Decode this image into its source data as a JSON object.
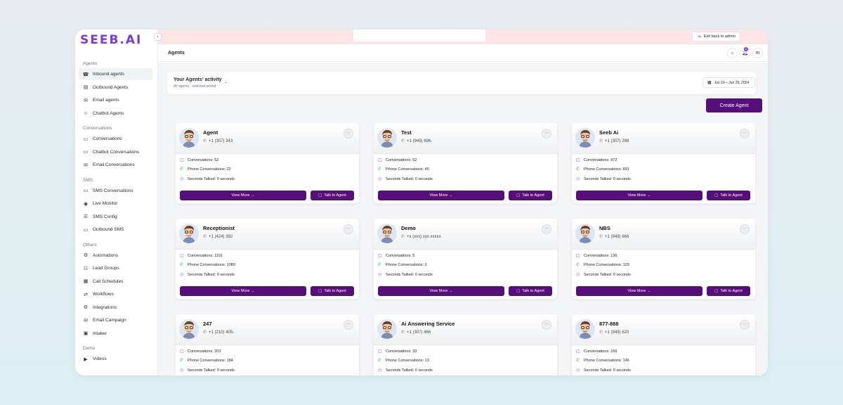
{
  "app": {
    "logo": "SEEB.AI",
    "collapse": "‹"
  },
  "topbar": {
    "exit_label": "Exit back to admin"
  },
  "header": {
    "title": "Agents",
    "notif_count": "0",
    "user_initial": "m"
  },
  "sidebar": {
    "sections": [
      {
        "label": "Agents",
        "items": [
          "Inbound agents",
          "Outbound Agents",
          "Email agents",
          "Chatbot Agents"
        ]
      },
      {
        "label": "Conversations",
        "items": [
          "Conversations",
          "Chatbot Conversations",
          "Email Conversations"
        ]
      },
      {
        "label": "SMS",
        "items": [
          "SMS Conversations",
          "Live Monitor",
          "SMS Config",
          "Outbound SMS"
        ]
      },
      {
        "label": "Others",
        "items": [
          "Automations",
          "Lead Groups",
          "Call Schedules",
          "Workflows",
          "Integrations",
          "Email Campaign",
          "Intaker"
        ]
      },
      {
        "label": "Demo",
        "items": [
          "Videos"
        ]
      }
    ]
  },
  "activity": {
    "title": "Your Agents' activity",
    "subtitle": "All agents · selected period",
    "date_range": "Jun 19 – Jun 25, 2024"
  },
  "create_label": "Create Agent",
  "card_labels": {
    "conversations": "Conversations:",
    "phone": "Phone Conversations:",
    "seconds": "Seconds Talked:",
    "view_more": "View More →",
    "talk": "Talk to Agent"
  },
  "cards": [
    {
      "name": "Agent",
      "phone": "+1 (307) 343",
      "conversations": "52",
      "phone_conversations": "22",
      "seconds": "0 seconds"
    },
    {
      "name": "Test",
      "phone": "+1 (949) 696-",
      "conversations": "52",
      "phone_conversations": "46",
      "seconds": "0 seconds"
    },
    {
      "name": "Seeb Ai",
      "phone": "+1 (307) 298",
      "conversations": "972",
      "phone_conversations": "891",
      "seconds": "0 seconds"
    },
    {
      "name": "Receptionist",
      "phone": "+1 (424) 392",
      "conversations": "1101",
      "phone_conversations": "1089",
      "seconds": "0 seconds"
    },
    {
      "name": "Demo",
      "phone": "+x (xxx) xxx xxxxx",
      "conversations": "5",
      "phone_conversations": "0",
      "seconds": "0 seconds"
    },
    {
      "name": "NBS",
      "phone": "+1 (949) 666",
      "conversations": "136",
      "phone_conversations": "129",
      "seconds": "0 seconds"
    },
    {
      "name": "247",
      "phone": "+1 (210) 405-",
      "conversations": "203",
      "phone_conversations": "184",
      "seconds": "0 seconds"
    },
    {
      "name": "Ai Answering Service",
      "phone": "+1 (307) 466",
      "conversations": "33",
      "phone_conversations": "13",
      "seconds": "0 seconds"
    },
    {
      "name": "877-888",
      "phone": "+1 (949) 620",
      "conversations": "156",
      "phone_conversations": "146",
      "seconds": "0 seconds"
    }
  ]
}
